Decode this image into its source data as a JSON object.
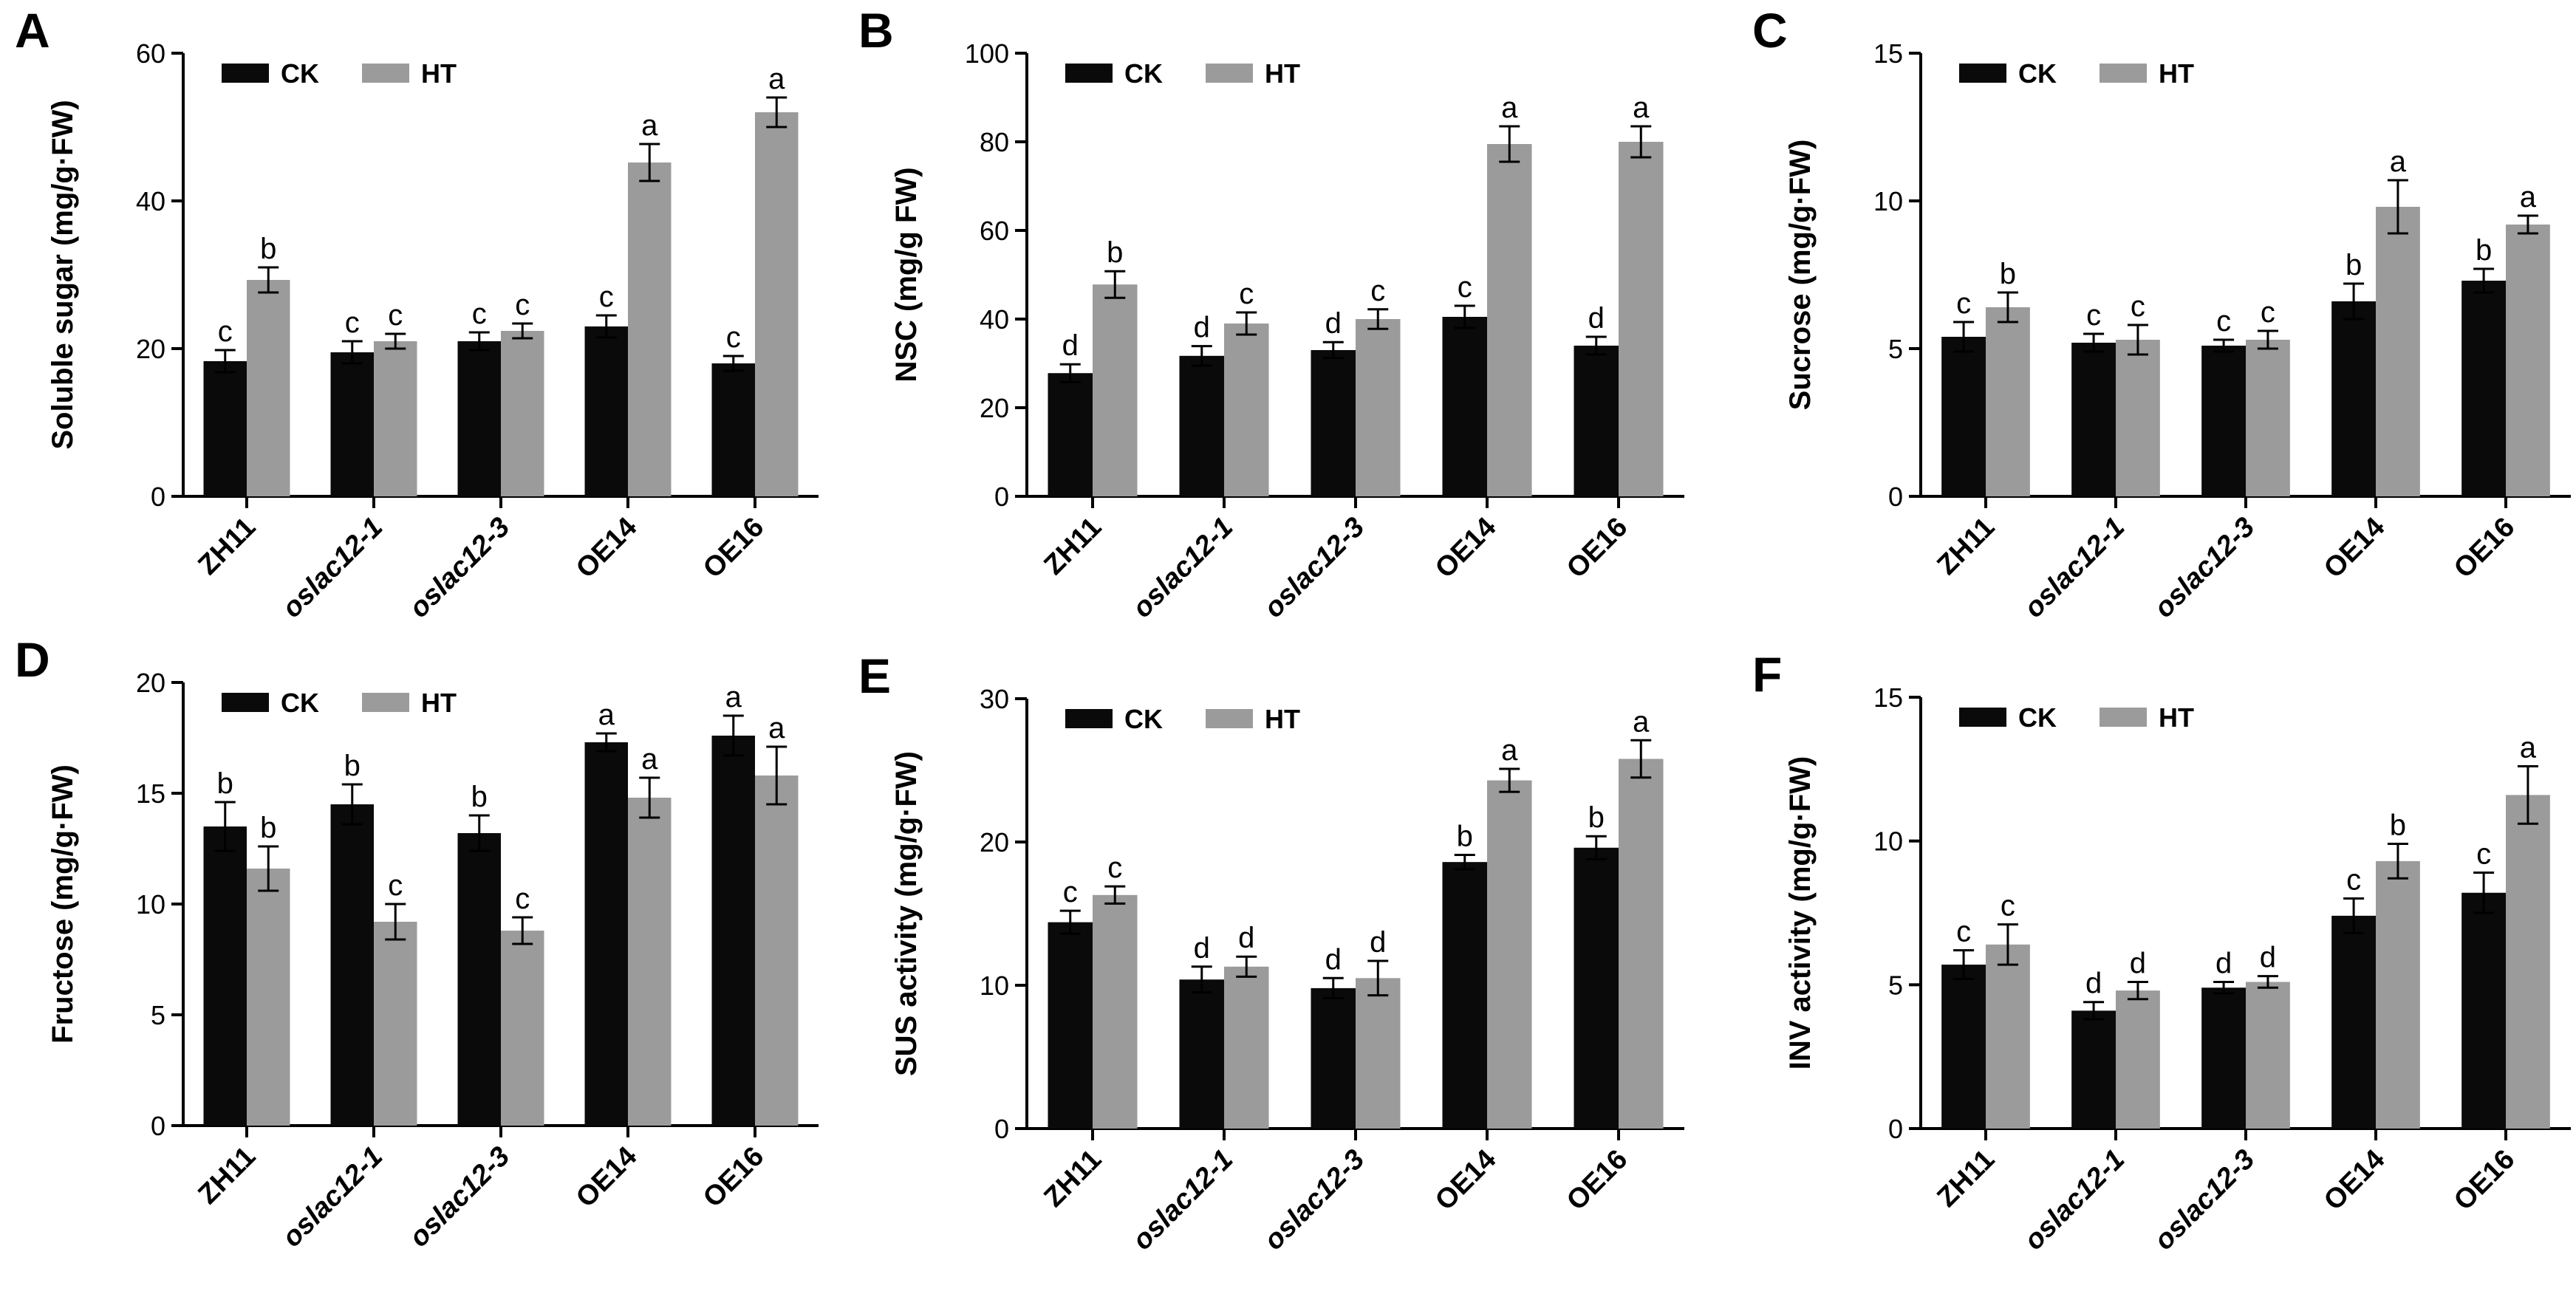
{
  "figure": {
    "legend_labels": [
      "CK",
      "HT"
    ],
    "colors": {
      "CK": "#0a0a0a",
      "HT": "#9b9b9b",
      "axis": "#000000",
      "text": "#000000"
    }
  },
  "chart_data": [
    {
      "panel": "A",
      "type": "bar",
      "title": "",
      "xlabel": "",
      "ylabel": "Soluble sugar (mg/g·FW)",
      "ylim": [
        0,
        60
      ],
      "yticks": [
        0,
        20,
        40,
        60
      ],
      "grid": false,
      "legend": "top-left",
      "categories": [
        "ZH11",
        "oslac12-1",
        "oslac12-3",
        "OE14",
        "OE16"
      ],
      "series": [
        {
          "name": "CK",
          "values": [
            18.3,
            19.5,
            21.0,
            23.0,
            18.0
          ],
          "errors": [
            1.5,
            1.5,
            1.2,
            1.5,
            1.0
          ],
          "sig": [
            "c",
            "c",
            "c",
            "c",
            "c"
          ]
        },
        {
          "name": "HT",
          "values": [
            29.3,
            21.0,
            22.4,
            45.2,
            52.0
          ],
          "errors": [
            1.7,
            1.0,
            1.0,
            2.5,
            2.0
          ],
          "sig": [
            "b",
            "c",
            "c",
            "a",
            "a"
          ]
        }
      ]
    },
    {
      "panel": "B",
      "type": "bar",
      "title": "",
      "xlabel": "",
      "ylabel": "NSC (mg/g FW)",
      "ylim": [
        0,
        100
      ],
      "yticks": [
        0,
        20,
        40,
        60,
        80,
        100
      ],
      "grid": false,
      "legend": "top-left",
      "categories": [
        "ZH11",
        "oslac12-1",
        "oslac12-3",
        "OE14",
        "OE16"
      ],
      "series": [
        {
          "name": "CK",
          "values": [
            27.8,
            31.7,
            33.0,
            40.5,
            34.0
          ],
          "errors": [
            2.0,
            2.2,
            1.8,
            2.5,
            2.0
          ],
          "sig": [
            "d",
            "d",
            "d",
            "c",
            "d"
          ]
        },
        {
          "name": "HT",
          "values": [
            47.8,
            39.0,
            40.0,
            79.5,
            80.0
          ],
          "errors": [
            3.0,
            2.5,
            2.2,
            4.0,
            3.5
          ],
          "sig": [
            "b",
            "c",
            "c",
            "a",
            "a"
          ]
        }
      ]
    },
    {
      "panel": "C",
      "type": "bar",
      "title": "",
      "xlabel": "",
      "ylabel": "Sucrose (mg/g·FW)",
      "ylim": [
        0,
        15
      ],
      "yticks": [
        0,
        5,
        10,
        15
      ],
      "grid": false,
      "legend": "top-left",
      "categories": [
        "ZH11",
        "oslac12-1",
        "oslac12-3",
        "OE14",
        "OE16"
      ],
      "series": [
        {
          "name": "CK",
          "values": [
            5.4,
            5.2,
            5.1,
            6.6,
            7.3
          ],
          "errors": [
            0.5,
            0.3,
            0.2,
            0.6,
            0.4
          ],
          "sig": [
            "c",
            "c",
            "c",
            "b",
            "b"
          ]
        },
        {
          "name": "HT",
          "values": [
            6.4,
            5.3,
            5.3,
            9.8,
            9.2
          ],
          "errors": [
            0.5,
            0.5,
            0.3,
            0.9,
            0.3
          ],
          "sig": [
            "b",
            "c",
            "c",
            "a",
            "a"
          ]
        }
      ]
    },
    {
      "panel": "D",
      "type": "bar",
      "title": "",
      "xlabel": "",
      "ylabel": "Fructose (mg/g·FW)",
      "ylim": [
        0,
        20
      ],
      "yticks": [
        0,
        5,
        10,
        15,
        20
      ],
      "grid": false,
      "legend": "top-left",
      "categories": [
        "ZH11",
        "oslac12-1",
        "oslac12-3",
        "OE14",
        "OE16"
      ],
      "series": [
        {
          "name": "CK",
          "values": [
            13.5,
            14.5,
            13.2,
            17.3,
            17.6
          ],
          "errors": [
            1.1,
            0.9,
            0.8,
            0.4,
            0.9
          ],
          "sig": [
            "b",
            "b",
            "b",
            "a",
            "a"
          ]
        },
        {
          "name": "HT",
          "values": [
            11.6,
            9.2,
            8.8,
            14.8,
            15.8
          ],
          "errors": [
            1.0,
            0.8,
            0.6,
            0.9,
            1.3
          ],
          "sig": [
            "b",
            "c",
            "c",
            "a",
            "a"
          ]
        }
      ]
    },
    {
      "panel": "E",
      "type": "bar",
      "title": "",
      "xlabel": "",
      "ylabel": "SUS activity (mg/g·FW)",
      "ylim": [
        0,
        30
      ],
      "yticks": [
        0,
        10,
        20,
        30
      ],
      "grid": false,
      "legend": "top-left",
      "categories": [
        "ZH11",
        "oslac12-1",
        "oslac12-3",
        "OE14",
        "OE16"
      ],
      "series": [
        {
          "name": "CK",
          "values": [
            14.4,
            10.4,
            9.8,
            18.6,
            19.6
          ],
          "errors": [
            0.8,
            0.9,
            0.7,
            0.5,
            0.8
          ],
          "sig": [
            "c",
            "d",
            "d",
            "b",
            "b"
          ]
        },
        {
          "name": "HT",
          "values": [
            16.3,
            11.3,
            10.5,
            24.3,
            25.8
          ],
          "errors": [
            0.6,
            0.7,
            1.2,
            0.8,
            1.3
          ],
          "sig": [
            "c",
            "d",
            "d",
            "a",
            "a"
          ]
        }
      ]
    },
    {
      "panel": "F",
      "type": "bar",
      "title": "",
      "xlabel": "",
      "ylabel": "INV activity (mg/g·FW)",
      "ylim": [
        0,
        15
      ],
      "yticks": [
        0,
        5,
        10,
        15
      ],
      "grid": false,
      "legend": "top-left",
      "categories": [
        "ZH11",
        "oslac12-1",
        "oslac12-3",
        "OE14",
        "OE16"
      ],
      "series": [
        {
          "name": "CK",
          "values": [
            5.7,
            4.1,
            4.9,
            7.4,
            8.2
          ],
          "errors": [
            0.5,
            0.3,
            0.2,
            0.6,
            0.7
          ],
          "sig": [
            "c",
            "d",
            "d",
            "c",
            "c"
          ]
        },
        {
          "name": "HT",
          "values": [
            6.4,
            4.8,
            5.1,
            9.3,
            11.6
          ],
          "errors": [
            0.7,
            0.3,
            0.2,
            0.6,
            1.0
          ],
          "sig": [
            "c",
            "d",
            "d",
            "b",
            "a"
          ]
        }
      ]
    }
  ]
}
